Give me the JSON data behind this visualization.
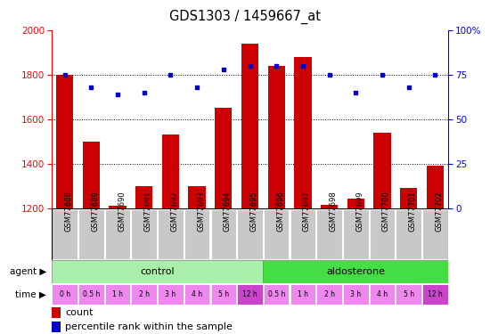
{
  "title": "GDS1303 / 1459667_at",
  "samples": [
    "GSM77688",
    "GSM77689",
    "GSM77690",
    "GSM77691",
    "GSM77692",
    "GSM77693",
    "GSM77694",
    "GSM77695",
    "GSM77696",
    "GSM77697",
    "GSM77698",
    "GSM77699",
    "GSM77700",
    "GSM77701",
    "GSM77702"
  ],
  "counts": [
    1800,
    1500,
    1210,
    1300,
    1530,
    1300,
    1650,
    1940,
    1840,
    1880,
    1215,
    1245,
    1540,
    1290,
    1390
  ],
  "percentiles": [
    75,
    68,
    64,
    65,
    75,
    68,
    78,
    80,
    80,
    80,
    75,
    65,
    75,
    68,
    75
  ],
  "ylim_left": [
    1200,
    2000
  ],
  "ylim_right": [
    0,
    100
  ],
  "yticks_left": [
    1200,
    1400,
    1600,
    1800,
    2000
  ],
  "yticks_right": [
    0,
    25,
    50,
    75,
    100
  ],
  "bar_color": "#cc0000",
  "dot_color": "#0000cc",
  "agent_control_color": "#aaf0aa",
  "agent_aldosterone_color": "#44dd44",
  "time_color_normal": "#ee88ee",
  "time_color_highlight": "#cc44cc",
  "sample_bg_color": "#c8c8c8",
  "grid_color": "#888888",
  "time_labels": [
    "0 h",
    "0.5 h",
    "1 h",
    "2 h",
    "3 h",
    "4 h",
    "5 h",
    "12 h",
    "0.5 h",
    "1 h",
    "2 h",
    "3 h",
    "4 h",
    "5 h",
    "12 h"
  ],
  "time_highlight_indices": [
    7,
    14
  ],
  "control_count": 8,
  "aldosterone_count": 7,
  "n_samples": 15
}
